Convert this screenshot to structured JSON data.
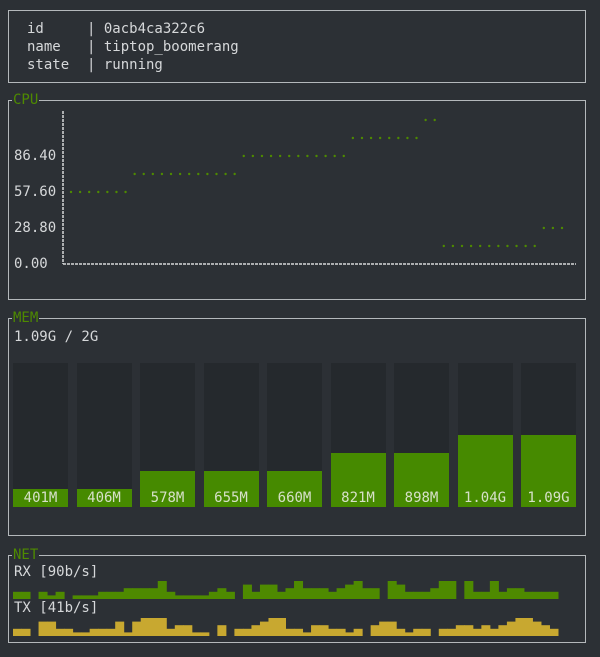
{
  "info": {
    "rows": [
      {
        "key": "id",
        "value": "0acb4ca322c6"
      },
      {
        "key": "name",
        "value": "tiptop_boomerang"
      },
      {
        "key": "state",
        "value": "running"
      }
    ]
  },
  "colors": {
    "accent": "#4e8a00",
    "bar": "#468a00",
    "tx": "#c8a830",
    "border": "#b4b8bb",
    "background": "#2c3035"
  },
  "cpu": {
    "title": "CPU",
    "y_ticks": [
      "86.40",
      "57.60",
      "28.80",
      "0.00"
    ],
    "y_tick_values": [
      86.4,
      57.6,
      28.8,
      0
    ],
    "values": [
      57.6,
      57.6,
      57.6,
      57.6,
      57.6,
      57.6,
      57.6,
      72,
      72,
      72,
      72,
      72,
      72,
      72,
      72,
      72,
      72,
      72,
      72,
      86.4,
      86.4,
      86.4,
      86.4,
      86.4,
      86.4,
      86.4,
      86.4,
      86.4,
      86.4,
      86.4,
      86.4,
      100.8,
      100.8,
      100.8,
      100.8,
      100.8,
      100.8,
      100.8,
      100.8,
      115.2,
      115.2,
      14.4,
      14.4,
      14.4,
      14.4,
      14.4,
      14.4,
      14.4,
      14.4,
      14.4,
      14.4,
      14.4,
      28.8,
      28.8,
      28.8
    ]
  },
  "mem": {
    "title": "MEM",
    "summary": "1.09G / 2G",
    "limit_mb": 2048,
    "bars": [
      {
        "label": "401M",
        "mb": 401
      },
      {
        "label": "406M",
        "mb": 406
      },
      {
        "label": "578M",
        "mb": 578
      },
      {
        "label": "655M",
        "mb": 655
      },
      {
        "label": "660M",
        "mb": 660
      },
      {
        "label": "821M",
        "mb": 821
      },
      {
        "label": "898M",
        "mb": 898
      },
      {
        "label": "1.04G",
        "mb": 1065
      },
      {
        "label": "1.09G",
        "mb": 1116
      }
    ]
  },
  "net": {
    "title": "NET",
    "rx_label": "RX [90b/s]",
    "tx_label": "TX [41b/s]",
    "rx": [
      2,
      2,
      0,
      2,
      1,
      2,
      0,
      1,
      1,
      1,
      2,
      2,
      2,
      3,
      3,
      3,
      3,
      5,
      2,
      1,
      1,
      1,
      1,
      2,
      3,
      2,
      0,
      4,
      2,
      4,
      4,
      2,
      3,
      5,
      3,
      3,
      3,
      2,
      3,
      4,
      5,
      3,
      3,
      0,
      5,
      4,
      2,
      2,
      2,
      3,
      5,
      5,
      0,
      5,
      2,
      2,
      5,
      2,
      3,
      3,
      2,
      2,
      2,
      2
    ],
    "tx": [
      2,
      2,
      0,
      4,
      4,
      2,
      2,
      1,
      1,
      2,
      2,
      2,
      4,
      1,
      4,
      5,
      5,
      5,
      2,
      3,
      3,
      1,
      1,
      0,
      3,
      0,
      2,
      2,
      3,
      4,
      5,
      5,
      2,
      2,
      1,
      3,
      3,
      2,
      2,
      1,
      2,
      0,
      3,
      4,
      4,
      2,
      1,
      2,
      2,
      0,
      2,
      2,
      3,
      3,
      2,
      3,
      2,
      3,
      4,
      5,
      5,
      4,
      3,
      2
    ]
  }
}
